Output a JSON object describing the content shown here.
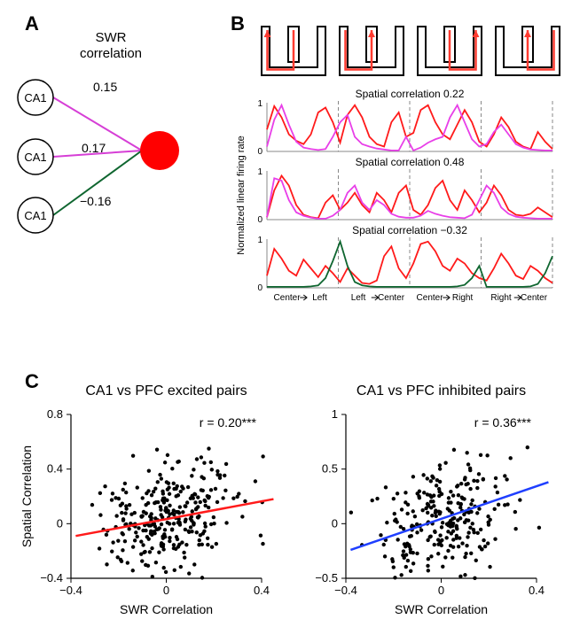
{
  "panelA": {
    "label": "A",
    "title": "SWR\ncorrelation",
    "title_fontsize": 15,
    "edges": [
      {
        "value": "0.15",
        "color": "#d63fd6"
      },
      {
        "value": "0.17",
        "color": "#d63fd6"
      },
      {
        "value": "−0.16",
        "color": "#0f6630"
      }
    ],
    "ca1_label": "CA1",
    "hub_color": "#ff0000",
    "node_stroke": "#000000",
    "node_fill": "#ffffff"
  },
  "panelB": {
    "label": "B",
    "maze_stroke": "#000000",
    "maze_path_color": "#ff3b30",
    "chart_titles": [
      "Spatial correlation 0.22",
      "Spatial correlation 0.48",
      "Spatial correlation −0.32"
    ],
    "ylabel": "Normalized linear firing rate",
    "xlabels": [
      "Center",
      "Left",
      "Left",
      "Center",
      "Center",
      "Right",
      "Right",
      "Center"
    ],
    "ylim": [
      0,
      1
    ],
    "yticks": [
      0,
      1
    ],
    "title_fontsize": 12,
    "axis_fontsize": 11,
    "series": [
      {
        "colors": [
          "#ff1a1a",
          "#e83fe8"
        ],
        "red": [
          0.45,
          0.93,
          0.7,
          0.35,
          0.22,
          0.15,
          0.35,
          0.8,
          0.9,
          0.6,
          0.18,
          0.75,
          0.95,
          0.7,
          0.3,
          0.15,
          0.1,
          0.6,
          0.8,
          0.3,
          0.38,
          0.85,
          0.95,
          0.6,
          0.35,
          0.25,
          0.55,
          0.85,
          0.6,
          0.2,
          0.1,
          0.35,
          0.7,
          0.5,
          0.2,
          0.1,
          0.05,
          0.4,
          0.2,
          0.05
        ],
        "pink": [
          0.1,
          0.65,
          0.95,
          0.55,
          0.2,
          0.08,
          0.05,
          0.03,
          0.05,
          0.3,
          0.6,
          0.75,
          0.3,
          0.15,
          0.1,
          0.06,
          0.04,
          0.02,
          0.02,
          0.3,
          0.02,
          0.08,
          0.18,
          0.25,
          0.3,
          0.7,
          0.95,
          0.6,
          0.25,
          0.1,
          0.15,
          0.4,
          0.55,
          0.35,
          0.15,
          0.08,
          0.04,
          0.03,
          0.02,
          0.02
        ]
      },
      {
        "colors": [
          "#ff1a1a",
          "#e83fe8"
        ],
        "red": [
          0.05,
          0.6,
          0.9,
          0.7,
          0.3,
          0.1,
          0.05,
          0.03,
          0.35,
          0.5,
          0.2,
          0.35,
          0.55,
          0.3,
          0.15,
          0.55,
          0.4,
          0.15,
          0.55,
          0.7,
          0.2,
          0.1,
          0.3,
          0.65,
          0.8,
          0.4,
          0.2,
          0.6,
          0.4,
          0.15,
          0.35,
          0.7,
          0.5,
          0.2,
          0.1,
          0.08,
          0.12,
          0.25,
          0.15,
          0.05
        ],
        "pink": [
          0.05,
          0.85,
          0.8,
          0.4,
          0.15,
          0.08,
          0.04,
          0.02,
          0.02,
          0.08,
          0.2,
          0.55,
          0.7,
          0.35,
          0.2,
          0.4,
          0.3,
          0.12,
          0.06,
          0.04,
          0.04,
          0.08,
          0.18,
          0.12,
          0.08,
          0.05,
          0.04,
          0.03,
          0.1,
          0.4,
          0.7,
          0.55,
          0.25,
          0.12,
          0.06,
          0.04,
          0.03,
          0.02,
          0.02,
          0.02
        ]
      },
      {
        "colors": [
          "#ff1a1a",
          "#0f6630"
        ],
        "red": [
          0.25,
          0.8,
          0.6,
          0.35,
          0.25,
          0.58,
          0.4,
          0.22,
          0.45,
          0.3,
          0.12,
          0.4,
          0.25,
          0.1,
          0.08,
          0.15,
          0.65,
          0.85,
          0.4,
          0.2,
          0.5,
          0.9,
          0.95,
          0.75,
          0.45,
          0.35,
          0.6,
          0.5,
          0.3,
          0.2,
          0.15,
          0.4,
          0.7,
          0.5,
          0.25,
          0.18,
          0.45,
          0.35,
          0.2,
          0.1
        ],
        "green": [
          0.02,
          0.02,
          0.02,
          0.02,
          0.02,
          0.02,
          0.03,
          0.05,
          0.2,
          0.55,
          0.95,
          0.45,
          0.12,
          0.05,
          0.03,
          0.02,
          0.02,
          0.02,
          0.02,
          0.02,
          0.02,
          0.02,
          0.02,
          0.02,
          0.02,
          0.02,
          0.03,
          0.06,
          0.2,
          0.45,
          0.02,
          0.02,
          0.02,
          0.02,
          0.02,
          0.02,
          0.03,
          0.08,
          0.3,
          0.65
        ]
      }
    ]
  },
  "panelC": {
    "label": "C",
    "plots": [
      {
        "title": "CA1 vs PFC excited pairs",
        "xlabel": "SWR Correlation",
        "ylabel": "Spatial Correlation",
        "xlim": [
          -0.4,
          0.4
        ],
        "xticks": [
          -0.4,
          0,
          0.4
        ],
        "ylim": [
          -0.4,
          0.8
        ],
        "yticks": [
          -0.4,
          0,
          0.4,
          0.8
        ],
        "r_text": "r = 0.20***",
        "line_color": "#ff1a1a",
        "line": {
          "x1": -0.38,
          "y1": -0.09,
          "x2": 0.45,
          "y2": 0.18
        },
        "n_points": 300,
        "seed": 11,
        "r": 0.2,
        "x_sd": 0.14,
        "y_sd": 0.22
      },
      {
        "title": "CA1 vs PFC inhibited pairs",
        "xlabel": "SWR Correlation",
        "ylabel": "",
        "xlim": [
          -0.4,
          0.4
        ],
        "xticks": [
          -0.4,
          0,
          0.4
        ],
        "ylim": [
          -0.5,
          1.0
        ],
        "yticks": [
          -0.5,
          0,
          0.5,
          1.0
        ],
        "r_text": "r = 0.36***",
        "line_color": "#1f3fff",
        "line": {
          "x1": -0.38,
          "y1": -0.24,
          "x2": 0.45,
          "y2": 0.38
        },
        "n_points": 260,
        "seed": 23,
        "r": 0.36,
        "x_sd": 0.15,
        "y_sd": 0.28
      }
    ],
    "title_fontsize": 16,
    "axis_fontsize": 14,
    "tick_fontsize": 13,
    "point_color": "#000000",
    "point_radius": 2.2
  }
}
